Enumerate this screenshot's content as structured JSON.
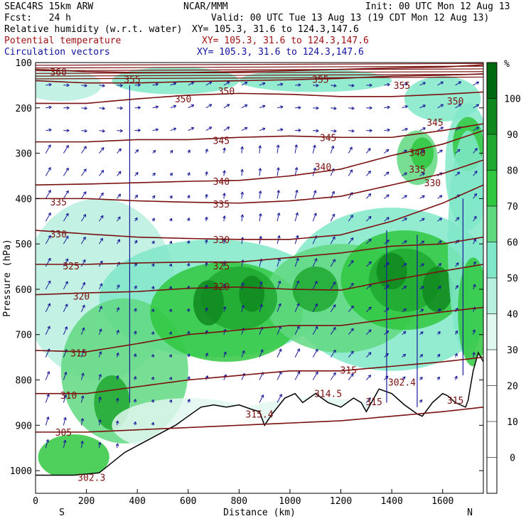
{
  "header": {
    "model": "SEAC4RS 15km ARW",
    "org": "NCAR/MMM",
    "init": "Init: 00 UTC Mon 12 Aug 13",
    "fcst": "Fcst:   24 h",
    "valid": "Valid: 00 UTC Tue 13 Aug 13 (19 CDT Mon 12 Aug 13)",
    "fields": [
      {
        "name": "Relative humidity (w.r.t. water)",
        "xy": "XY= 105.3, 31.6 to 124.3,147.6",
        "color": "#000000"
      },
      {
        "name": "Potential temperature",
        "xy": "XY= 105.3, 31.6 to 124.3,147.6",
        "color": "#8b0000"
      },
      {
        "name": "Circulation vectors",
        "xy": "XY= 105.3, 31.6 to 124.3,147.6",
        "color": "#00008b"
      }
    ]
  },
  "chart_data": {
    "type": "heatmap",
    "xlabel": "Distance (km)",
    "ylabel": "Pressure (hPa)",
    "x_ticks": [
      0,
      200,
      400,
      600,
      800,
      1000,
      1200,
      1400,
      1600
    ],
    "x_range": [
      0,
      1760
    ],
    "y_ticks": [
      100,
      200,
      300,
      400,
      500,
      600,
      700,
      800,
      900,
      1000
    ],
    "y_range": [
      100,
      1050
    ],
    "x_endpoint_labels": {
      "left": "S",
      "right": "N"
    },
    "colorbar": {
      "unit": "%",
      "levels": [
        0,
        10,
        20,
        30,
        40,
        50,
        60,
        70,
        80,
        90,
        100
      ],
      "colors": [
        "#ffffff",
        "#ffffff",
        "#ffffff",
        "#ffffff",
        "#e0f8f0",
        "#b8f0e0",
        "#80e8c8",
        "#60d880",
        "#30c840",
        "#20a830",
        "#108820",
        "#006810"
      ]
    },
    "theta_contours": [
      {
        "label": "360",
        "pressure": [
          115,
          120,
          122,
          122,
          120,
          118,
          115,
          112,
          110,
          105
        ],
        "x": [
          0,
          200,
          400,
          600,
          800,
          1000,
          1200,
          1400,
          1600,
          1760
        ]
      },
      {
        "label": "355",
        "pressure": [
          140,
          145,
          145,
          142,
          140,
          138,
          135,
          130,
          128,
          125
        ],
        "x": [
          0,
          200,
          400,
          600,
          800,
          1000,
          1200,
          1400,
          1600,
          1760
        ]
      },
      {
        "label": "350",
        "pressure": [
          190,
          190,
          180,
          172,
          168,
          170,
          175,
          175,
          170,
          165
        ],
        "x": [
          0,
          200,
          400,
          600,
          800,
          1000,
          1200,
          1400,
          1600,
          1760
        ]
      },
      {
        "label": "345",
        "pressure": [
          275,
          275,
          270,
          270,
          265,
          262,
          265,
          265,
          250,
          235
        ],
        "x": [
          0,
          200,
          400,
          600,
          800,
          1000,
          1200,
          1400,
          1600,
          1760
        ]
      },
      {
        "label": "340",
        "pressure": [
          370,
          368,
          365,
          362,
          360,
          350,
          335,
          305,
          280,
          250
        ],
        "x": [
          0,
          200,
          400,
          600,
          800,
          1000,
          1200,
          1400,
          1600,
          1760
        ]
      },
      {
        "label": "335",
        "pressure": [
          400,
          400,
          405,
          408,
          410,
          405,
          395,
          370,
          345,
          315
        ],
        "x": [
          0,
          200,
          400,
          600,
          800,
          1000,
          1200,
          1400,
          1600,
          1760
        ]
      },
      {
        "label": "330",
        "pressure": [
          470,
          478,
          485,
          488,
          490,
          490,
          480,
          450,
          410,
          370
        ],
        "x": [
          0,
          200,
          400,
          600,
          800,
          1000,
          1200,
          1400,
          1600,
          1760
        ]
      },
      {
        "label": "325",
        "pressure": [
          545,
          545,
          542,
          540,
          540,
          530,
          520,
          505,
          500,
          485
        ],
        "x": [
          0,
          200,
          400,
          600,
          800,
          1000,
          1200,
          1400,
          1600,
          1760
        ]
      },
      {
        "label": "320",
        "pressure": [
          612,
          608,
          605,
          598,
          595,
          600,
          602,
          580,
          560,
          545
        ],
        "x": [
          0,
          200,
          400,
          600,
          800,
          1000,
          1200,
          1400,
          1600,
          1760
        ]
      },
      {
        "label": "315",
        "pressure": [
          735,
          738,
          720,
          700,
          690,
          680,
          680,
          665,
          650,
          640
        ],
        "x": [
          0,
          200,
          400,
          600,
          800,
          1000,
          1200,
          1400,
          1600,
          1760
        ]
      },
      {
        "label": "310",
        "pressure": [
          830,
          830,
          815,
          800,
          790,
          780,
          780,
          770,
          760,
          750
        ],
        "x": [
          0,
          200,
          400,
          600,
          800,
          1000,
          1200,
          1400,
          1600,
          1760
        ]
      },
      {
        "label": "305",
        "pressure": [
          915,
          915,
          910,
          905,
          900,
          895,
          890,
          880,
          870,
          860
        ],
        "x": [
          0,
          200,
          400,
          600,
          800,
          1000,
          1200,
          1400,
          1600,
          1760
        ]
      }
    ],
    "contour_labels": [
      {
        "text": "360",
        "x": 90,
        "p": 120
      },
      {
        "text": "355",
        "x": 380,
        "p": 137
      },
      {
        "text": "355",
        "x": 1120,
        "p": 137
      },
      {
        "text": "355",
        "x": 1440,
        "p": 150
      },
      {
        "text": "350",
        "x": 580,
        "p": 180
      },
      {
        "text": "350",
        "x": 750,
        "p": 163
      },
      {
        "text": "350",
        "x": 1650,
        "p": 185
      },
      {
        "text": "345",
        "x": 1570,
        "p": 232
      },
      {
        "text": "345",
        "x": 730,
        "p": 272
      },
      {
        "text": "345",
        "x": 1150,
        "p": 265
      },
      {
        "text": "340",
        "x": 1500,
        "p": 298
      },
      {
        "text": "340",
        "x": 730,
        "p": 362
      },
      {
        "text": "340",
        "x": 1130,
        "p": 330
      },
      {
        "text": "335",
        "x": 1500,
        "p": 335
      },
      {
        "text": "330",
        "x": 1560,
        "p": 365
      },
      {
        "text": "335",
        "x": 90,
        "p": 407
      },
      {
        "text": "335",
        "x": 730,
        "p": 412
      },
      {
        "text": "330",
        "x": 90,
        "p": 478
      },
      {
        "text": "330",
        "x": 730,
        "p": 490
      },
      {
        "text": "325",
        "x": 140,
        "p": 548
      },
      {
        "text": "325",
        "x": 730,
        "p": 548
      },
      {
        "text": "320",
        "x": 180,
        "p": 615
      },
      {
        "text": "320",
        "x": 730,
        "p": 594
      },
      {
        "text": "315",
        "x": 170,
        "p": 740
      },
      {
        "text": "315",
        "x": 1230,
        "p": 778
      },
      {
        "text": "310",
        "x": 130,
        "p": 834
      },
      {
        "text": "305",
        "x": 110,
        "p": 915
      },
      {
        "text": "302.3",
        "x": 220,
        "p": 1015
      },
      {
        "text": "315.4",
        "x": 880,
        "p": 875
      },
      {
        "text": "314.5",
        "x": 1150,
        "p": 830
      },
      {
        "text": "315",
        "x": 1330,
        "p": 848
      },
      {
        "text": "302.4",
        "x": 1440,
        "p": 805
      },
      {
        "text": "315",
        "x": 1650,
        "p": 845
      }
    ],
    "terrain_pressure": {
      "x": [
        0,
        150,
        250,
        350,
        450,
        550,
        600,
        650,
        700,
        750,
        800,
        850,
        880,
        900,
        930,
        980,
        1020,
        1050,
        1100,
        1150,
        1200,
        1250,
        1280,
        1300,
        1350,
        1400,
        1450,
        1500,
        1520,
        1560,
        1600,
        1620,
        1650,
        1690,
        1700,
        1720,
        1740,
        1760
      ],
      "p": [
        1010,
        1010,
        1005,
        960,
        930,
        900,
        880,
        860,
        855,
        860,
        855,
        865,
        870,
        900,
        875,
        840,
        830,
        850,
        830,
        850,
        860,
        840,
        850,
        870,
        820,
        830,
        855,
        875,
        880,
        850,
        830,
        835,
        850,
        860,
        845,
        780,
        740,
        760
      ]
    }
  }
}
